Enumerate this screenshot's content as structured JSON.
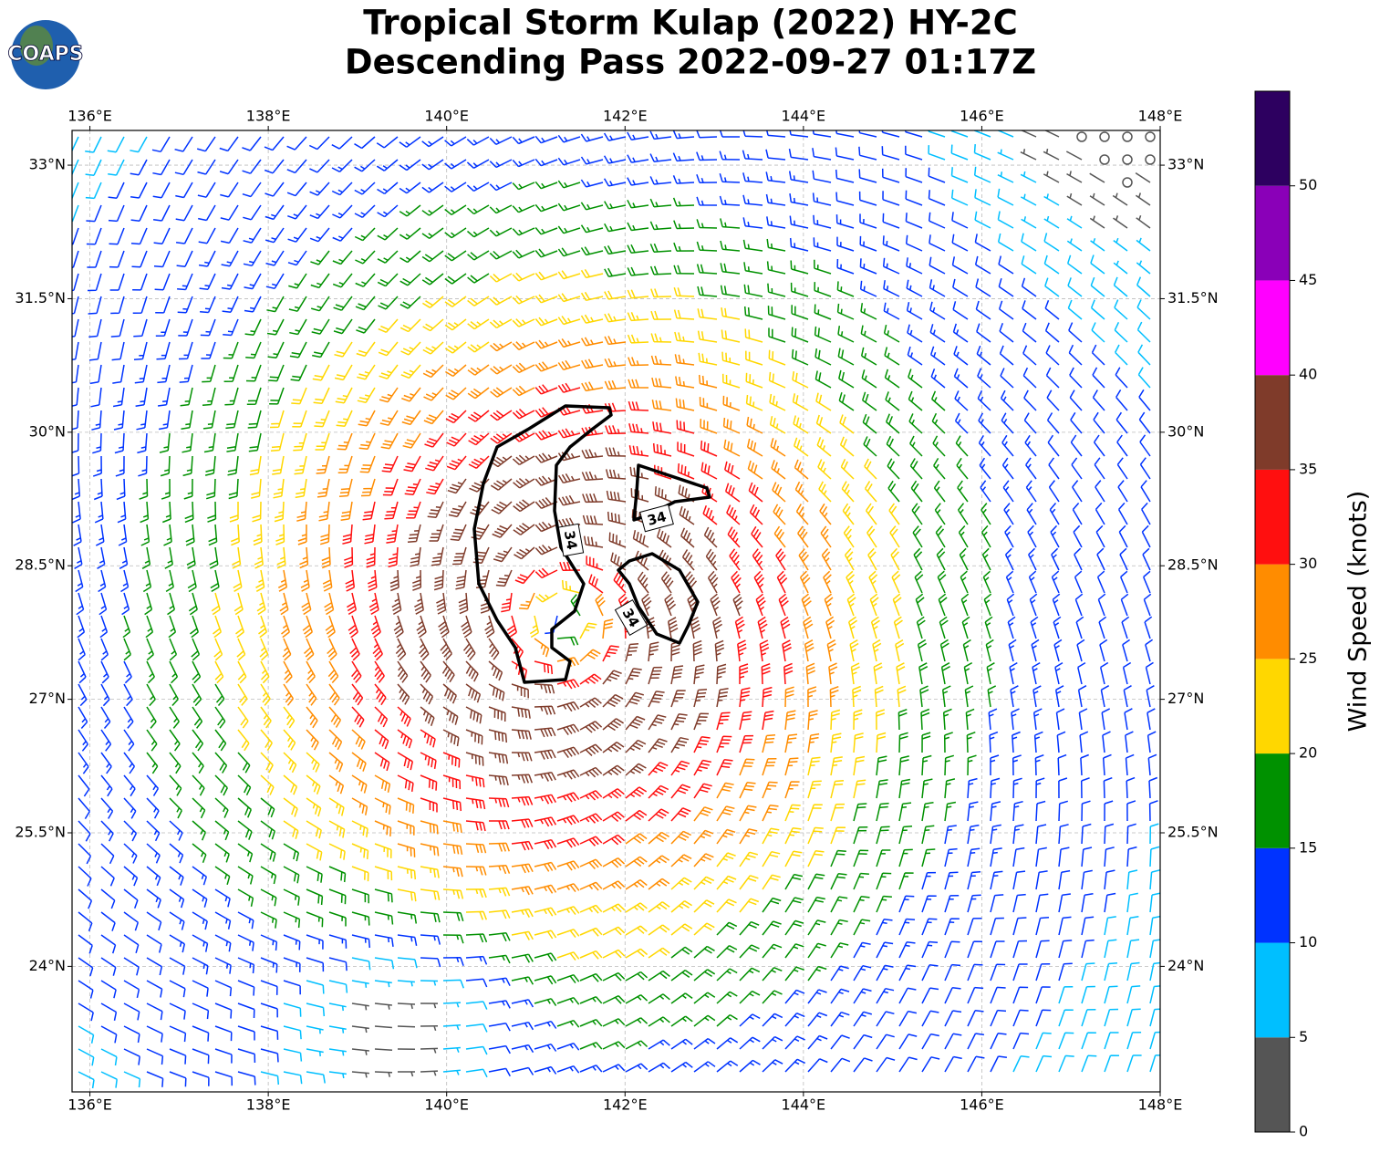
{
  "title": "Tropical Storm Kulap (2022) HY-2C",
  "subtitle": "Descending Pass 2022-09-27 01:17Z",
  "logo": "COAPS",
  "map": {
    "xlim": [
      135.8,
      148.0
    ],
    "ylim": [
      22.59,
      33.39
    ],
    "xticks": [
      {
        "value": 136,
        "label": "136°E"
      },
      {
        "value": 138,
        "label": "138°E"
      },
      {
        "value": 140,
        "label": "140°E"
      },
      {
        "value": 142,
        "label": "142°E"
      },
      {
        "value": 144,
        "label": "144°E"
      },
      {
        "value": 146,
        "label": "146°E"
      },
      {
        "value": 148,
        "label": "148°E"
      }
    ],
    "yticks": [
      {
        "value": 24,
        "label": "24°N"
      },
      {
        "value": 25.5,
        "label": "25.5°N"
      },
      {
        "value": 27,
        "label": "27°N"
      },
      {
        "value": 28.5,
        "label": "28.5°N"
      },
      {
        "value": 30,
        "label": "30°N"
      },
      {
        "value": 31.5,
        "label": "31.5°N"
      },
      {
        "value": 33,
        "label": "33°N"
      }
    ],
    "grid": true,
    "contour_level": 34
  },
  "colorbar": {
    "label": "Wind Speed (knots)",
    "lim": [
      0,
      55
    ],
    "bounds": [
      0,
      5,
      10,
      15,
      20,
      25,
      30,
      35,
      40,
      45,
      50,
      55
    ],
    "colors": [
      "#555555",
      "#00bfff",
      "#0033ff",
      "#009100",
      "#ffd700",
      "#ff8c00",
      "#ff0f0f",
      "#7f3b2a",
      "#ff00ff",
      "#8a00b8",
      "#2d0060"
    ],
    "ticks": [
      0,
      5,
      10,
      15,
      20,
      25,
      30,
      35,
      40,
      45,
      50
    ]
  }
}
